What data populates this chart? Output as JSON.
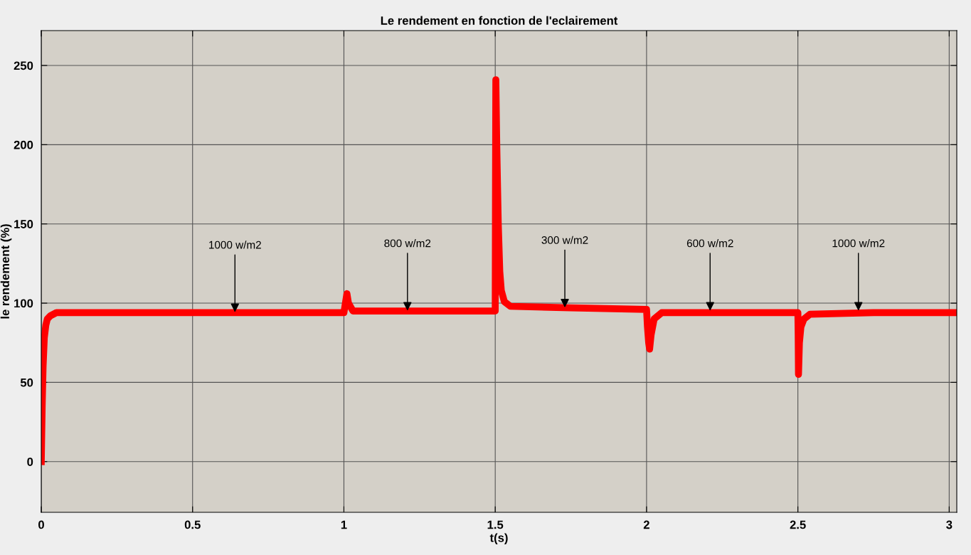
{
  "chart_data": {
    "type": "line",
    "title": "Le rendement en fonction de l'eclairement",
    "xlabel": "t(s)",
    "ylabel": "le rendement (%)",
    "series": [
      {
        "color": "#ff0000",
        "x": [
          0,
          0.003,
          0.006,
          0.01,
          0.015,
          0.02,
          0.03,
          0.05,
          0.25,
          0.5,
          0.75,
          1.0,
          1.005,
          1.01,
          1.015,
          1.03,
          1.25,
          1.5,
          1.501,
          1.502,
          1.505,
          1.51,
          1.515,
          1.52,
          1.53,
          1.55,
          1.75,
          2.0,
          2.003,
          2.007,
          2.01,
          2.015,
          2.025,
          2.05,
          2.25,
          2.5,
          2.501,
          2.502,
          2.505,
          2.51,
          2.52,
          2.54,
          2.75,
          3.025
        ],
        "values": [
          0,
          35,
          60,
          78,
          86,
          90,
          92,
          94,
          94,
          94,
          94,
          94,
          100,
          106,
          100,
          95,
          95,
          95,
          180,
          241,
          200,
          150,
          120,
          108,
          101,
          98,
          97,
          96,
          85,
          75,
          71,
          80,
          90,
          94,
          94,
          94,
          80,
          55,
          75,
          85,
          90,
          93,
          94,
          94
        ]
      }
    ],
    "xlim": [
      0,
      3.025
    ],
    "ylim": [
      -32,
      272
    ],
    "xticks": [
      0,
      0.5,
      1,
      1.5,
      2,
      2.5,
      3
    ],
    "yticks": [
      0,
      50,
      100,
      150,
      200,
      250
    ],
    "grid": true,
    "line_style": "solid",
    "annotations": [
      {
        "text": "1000 w/m2",
        "x": 0.64,
        "y": 93
      },
      {
        "text": "800 w/m2",
        "x": 1.21,
        "y": 94
      },
      {
        "text": "300 w/m2",
        "x": 1.73,
        "y": 96
      },
      {
        "text": "600 w/m2",
        "x": 2.21,
        "y": 94
      },
      {
        "text": "1000 w/m2",
        "x": 2.7,
        "y": 94
      }
    ]
  }
}
